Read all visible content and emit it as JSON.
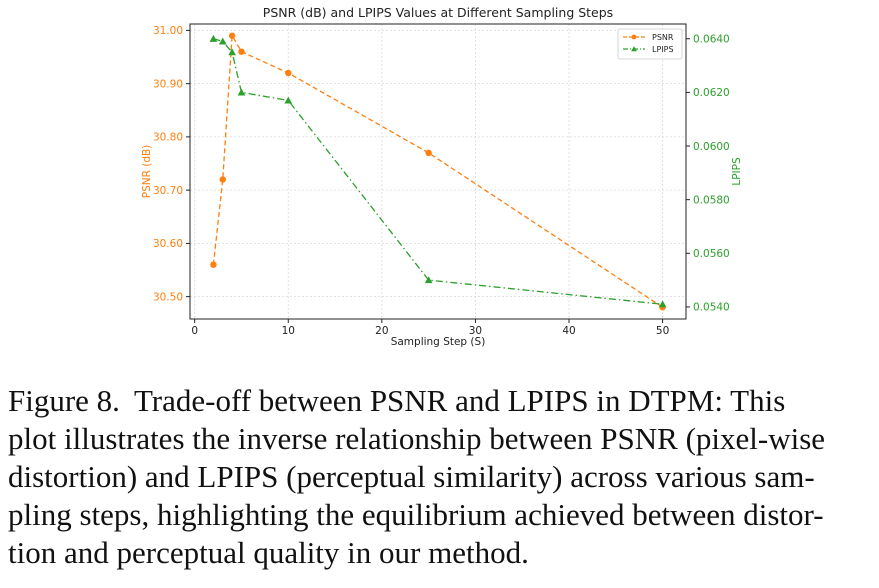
{
  "chart_data": {
    "type": "line",
    "title": "PSNR (dB) and LPIPS Values at Different Sampling Steps",
    "xlabel": "Sampling Step (S)",
    "ylabel_left": "PSNR (dB)",
    "ylabel_right": "LPIPS",
    "x_ticks": [
      "0",
      "10",
      "20",
      "30",
      "40",
      "50"
    ],
    "y_left_ticks": [
      "30.50",
      "30.60",
      "30.70",
      "30.80",
      "30.90",
      "31.00"
    ],
    "y_right_ticks": [
      "0.0540",
      "0.0560",
      "0.0580",
      "0.0600",
      "0.0620",
      "0.0640"
    ],
    "xlim": [
      -0.5,
      52.5
    ],
    "ylim_left": [
      30.458,
      31.012
    ],
    "ylim_right": [
      0.05355,
      0.06455
    ],
    "grid": true,
    "legend_position": "top-right",
    "series": [
      {
        "name": "PSNR",
        "axis": "left",
        "color": "#ff7f0e",
        "marker": "circle",
        "linestyle": "dashed",
        "x": [
          2,
          3,
          4,
          5,
          10,
          25,
          50
        ],
        "y": [
          30.56,
          30.72,
          30.99,
          30.96,
          30.92,
          30.77,
          30.48
        ]
      },
      {
        "name": "LPIPS",
        "axis": "right",
        "color": "#2ca02c",
        "marker": "triangle",
        "linestyle": "dashdot",
        "x": [
          2,
          3,
          4,
          5,
          10,
          25,
          50
        ],
        "y": [
          0.064,
          0.0639,
          0.0635,
          0.062,
          0.0617,
          0.055,
          0.0541
        ]
      }
    ]
  },
  "caption": {
    "label": "Figure 8.",
    "line1": "Trade-off between PSNR and LPIPS in DTPM: This",
    "line2": "plot illustrates the inverse relationship between PSNR (pixel-wise",
    "line3": "distortion) and LPIPS (perceptual similarity) across various sam-",
    "line4": "pling steps, highlighting the equilibrium achieved between distor-",
    "line5": "tion and perceptual quality in our method."
  }
}
